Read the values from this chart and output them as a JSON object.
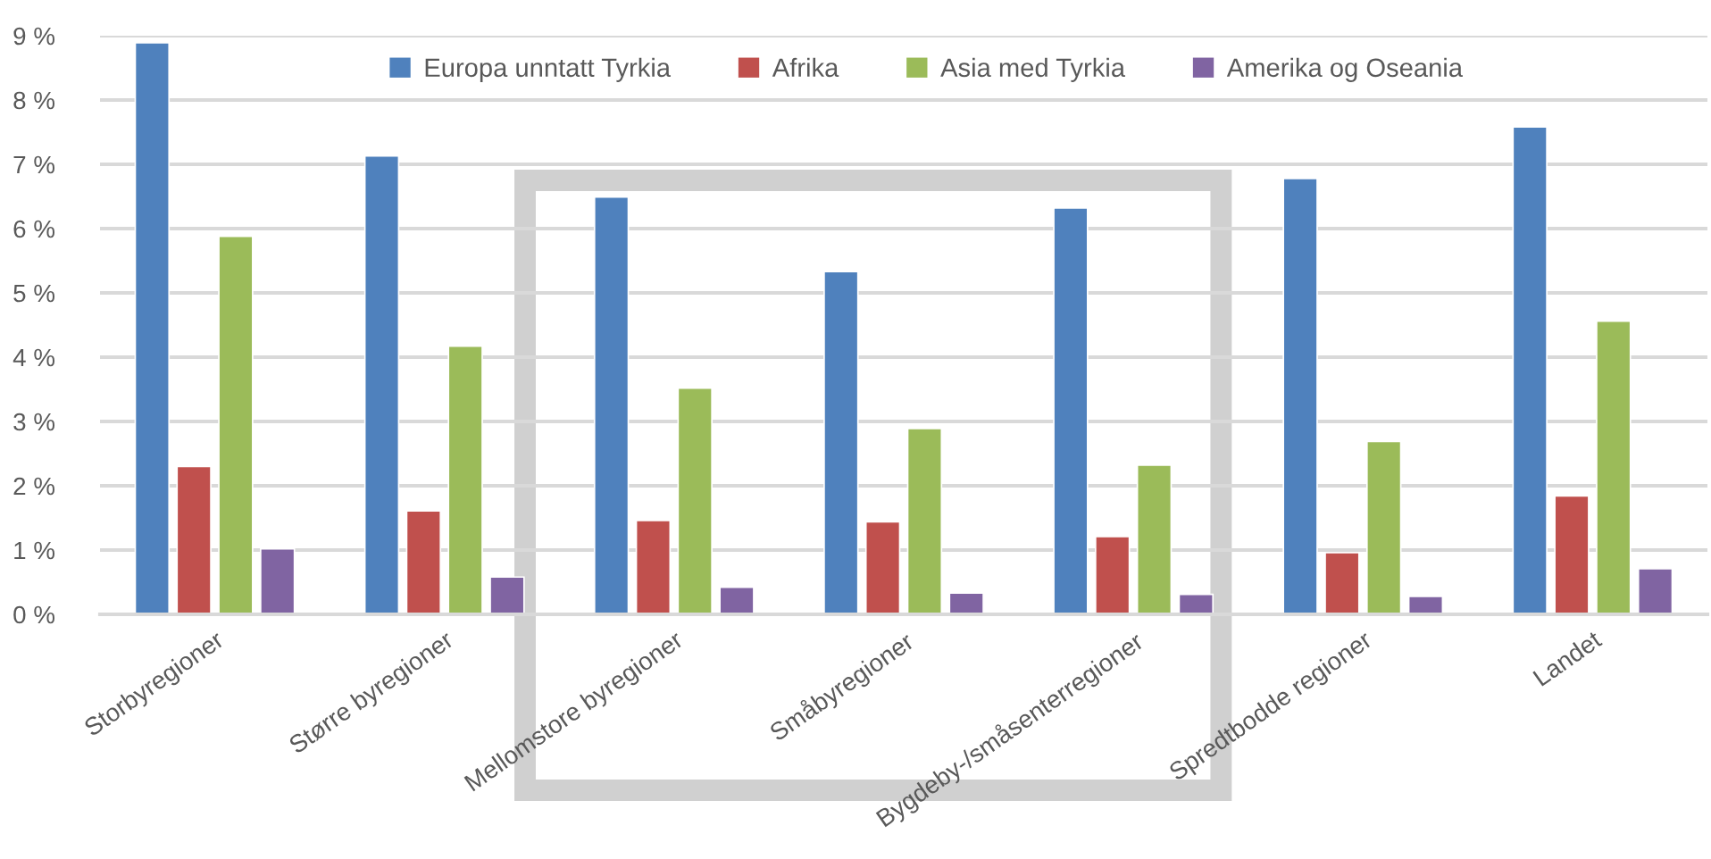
{
  "chart_data": {
    "type": "bar",
    "categories": [
      "Storbyregioner",
      "Større byregioner",
      "Mellomstore byregioner",
      "Småbyregioner",
      "Bygdeby-/småsenterregioner",
      "Spredtbodde regioner",
      "Landet"
    ],
    "series": [
      {
        "name": "Europa unntatt Tyrkia",
        "color": "#4f81bd",
        "values": [
          8.89,
          7.13,
          6.49,
          5.33,
          6.32,
          6.78,
          7.58
        ]
      },
      {
        "name": "Afrika",
        "color": "#c0504d",
        "values": [
          2.3,
          1.61,
          1.46,
          1.44,
          1.21,
          0.96,
          1.84
        ]
      },
      {
        "name": "Asia med Tyrkia",
        "color": "#9bbb59",
        "values": [
          5.88,
          4.17,
          3.52,
          2.89,
          2.32,
          2.69,
          4.56
        ]
      },
      {
        "name": "Amerika og Oseania",
        "color": "#8064a2",
        "values": [
          1.02,
          0.58,
          0.42,
          0.33,
          0.31,
          0.28,
          0.71
        ]
      }
    ],
    "ylim": [
      0,
      9
    ],
    "yticks": [
      {
        "value": 0,
        "label": "0 %"
      },
      {
        "value": 1,
        "label": "1 %"
      },
      {
        "value": 2,
        "label": "2 %"
      },
      {
        "value": 3,
        "label": "3 %"
      },
      {
        "value": 4,
        "label": "4 %"
      },
      {
        "value": 5,
        "label": "5 %"
      },
      {
        "value": 6,
        "label": "6 %"
      },
      {
        "value": 7,
        "label": "7 %"
      },
      {
        "value": 8,
        "label": "8 %"
      },
      {
        "value": 9,
        "label": "9 %"
      }
    ],
    "grid": "y",
    "legend": "top"
  }
}
